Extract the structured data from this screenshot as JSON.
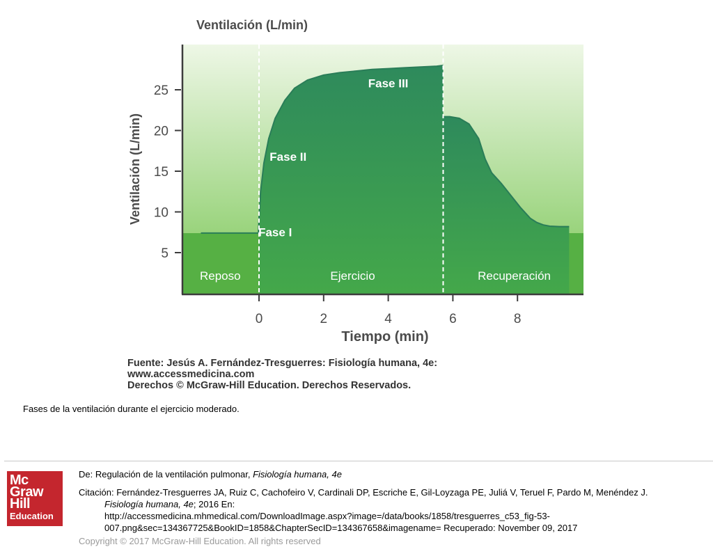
{
  "chart_data": {
    "type": "area",
    "title": "Ventilación (L/min)",
    "xlabel": "Tiempo (min)",
    "ylabel": "Ventilación (L/min)",
    "xlim": [
      -1.9,
      10.0
    ],
    "ylim": [
      0,
      30
    ],
    "x_ticks": [
      0,
      2,
      4,
      6,
      8
    ],
    "y_ticks": [
      5,
      10,
      15,
      20,
      25
    ],
    "series": [
      {
        "x": [
          -1.8,
          -1.0,
          -0.02,
          0.0,
          0.05,
          0.15,
          0.3,
          0.5,
          0.8,
          1.1,
          1.5,
          2.0,
          2.5,
          3.0,
          3.5,
          4.0,
          4.5,
          5.0,
          5.5,
          5.7
        ],
        "y": [
          7.4,
          7.4,
          7.4,
          9.2,
          12.5,
          16.0,
          19.0,
          21.5,
          23.7,
          25.2,
          26.2,
          26.8,
          27.1,
          27.3,
          27.5,
          27.6,
          27.7,
          27.8,
          27.9,
          28.0
        ]
      },
      {
        "x": [
          5.7,
          5.9,
          6.2,
          6.5,
          6.8,
          7.0,
          7.2,
          7.5,
          7.8,
          8.1,
          8.4,
          8.6,
          8.8,
          9.0,
          9.3,
          9.6
        ],
        "y": [
          21.7,
          21.7,
          21.5,
          20.8,
          19.0,
          16.5,
          14.8,
          13.5,
          12.0,
          10.5,
          9.2,
          8.7,
          8.4,
          8.25,
          8.2,
          8.2
        ]
      }
    ],
    "phase_labels": [
      {
        "text": "Fase I",
        "x": 0.5,
        "y": 7.0
      },
      {
        "text": "Fase II",
        "x": 0.9,
        "y": 16.3
      },
      {
        "text": "Fase III",
        "x": 4.0,
        "y": 25.3
      }
    ],
    "period_dividers": [
      0,
      5.7
    ],
    "period_labels": [
      {
        "text": "Reposo",
        "x": -1.2
      },
      {
        "text": "Ejercicio",
        "x": 2.9
      },
      {
        "text": "Recuperación",
        "x": 7.9
      }
    ],
    "colors": {
      "background_top": "#eef7e6",
      "background_bottom": "#7ec85a",
      "band": "#56b044",
      "area_top": "#2e8a5c",
      "area_bottom": "#44a84a",
      "line": "#2a7d58"
    }
  },
  "figure_credit": {
    "line1": "Fuente: Jesús A. Fernández-Tresguerres: Fisiología humana, 4e:",
    "line2": "www.accessmedicina.com",
    "line3": "Derechos © McGraw-Hill Education. Derechos Reservados."
  },
  "caption": "Fases de la ventilación durante el ejercicio moderado.",
  "logo": {
    "line1": "Mc",
    "line2": "Graw",
    "line3": "Hill",
    "line4": "Education"
  },
  "meta": {
    "from_label": "De: Regulación de la ventilación pulmonar,",
    "from_book": "Fisiología humana, 4e",
    "citation_label": "Citación: Fernández-Tresguerres JA, Ruiz C, Cachofeiro V, Cardinali DP, Escriche E, Gil-Loyzaga PE, Juliá V, Teruel F, Pardo M, Menéndez J.",
    "citation_book": "Fisiología humana, 4e",
    "citation_year": "; 2016 En:",
    "citation_url1": "http://accessmedicina.mhmedical.com/DownloadImage.aspx?image=/data/books/1858/tresguerres_c53_fig-53-",
    "citation_url2": "007.png&sec=134367725&BookID=1858&ChapterSecID=134367658&imagename= Recuperado: November 09, 2017",
    "copyright": "Copyright © 2017 McGraw-Hill Education. All rights reserved"
  }
}
